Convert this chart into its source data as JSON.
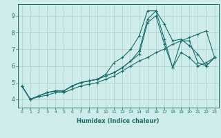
{
  "xlabel": "Humidex (Indice chaleur)",
  "bg_color": "#ceecea",
  "grid_color": "#aad0ce",
  "line_color": "#1a6b6b",
  "xlim": [
    -0.5,
    23.5
  ],
  "ylim": [
    3.5,
    9.7
  ],
  "xticks": [
    0,
    1,
    2,
    3,
    4,
    5,
    6,
    7,
    8,
    9,
    10,
    11,
    12,
    13,
    14,
    15,
    16,
    17,
    18,
    19,
    20,
    21,
    22,
    23
  ],
  "yticks": [
    4,
    5,
    6,
    7,
    8,
    9
  ],
  "series": [
    [
      4.8,
      4.0,
      4.2,
      4.4,
      4.5,
      4.5,
      4.8,
      5.0,
      5.1,
      5.2,
      5.5,
      6.2,
      6.5,
      7.0,
      7.8,
      9.3,
      9.3,
      8.5,
      7.5,
      7.6,
      7.2,
      6.7,
      6.0,
      6.5
    ],
    [
      4.8,
      4.0,
      4.2,
      4.4,
      4.5,
      4.5,
      4.8,
      5.0,
      5.1,
      5.2,
      5.4,
      5.6,
      5.9,
      6.3,
      6.9,
      8.8,
      9.3,
      7.6,
      5.9,
      7.5,
      7.5,
      6.2,
      6.0,
      6.5
    ],
    [
      4.8,
      4.0,
      4.2,
      4.4,
      4.5,
      4.5,
      4.8,
      5.0,
      5.1,
      5.2,
      5.4,
      5.6,
      5.9,
      6.3,
      6.7,
      8.6,
      9.0,
      7.3,
      5.9,
      6.8,
      6.5,
      6.0,
      6.2,
      6.5
    ],
    [
      4.8,
      4.0,
      4.15,
      4.25,
      4.4,
      4.4,
      4.6,
      4.8,
      4.9,
      5.0,
      5.2,
      5.4,
      5.7,
      6.0,
      6.3,
      6.5,
      6.8,
      7.0,
      7.3,
      7.5,
      7.7,
      7.9,
      8.1,
      6.5
    ]
  ]
}
